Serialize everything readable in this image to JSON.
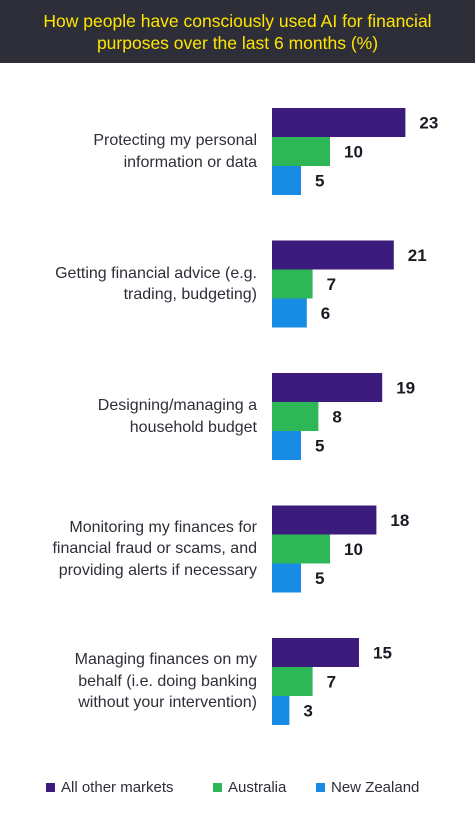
{
  "title": {
    "line1": "How people have consciously used AI for financial",
    "line2": "purposes over the last 6 months (%)"
  },
  "chart_data": {
    "type": "bar",
    "orientation": "horizontal",
    "title": "How people have consciously used AI for financial purposes over the last 6 months (%)",
    "categories": [
      "Protecting my personal information or data",
      "Getting financial advice (e.g. trading, budgeting)",
      "Designing/managing a household budget",
      "Monitoring my finances for financial fraud or scams, and providing alerts if necessary",
      "Managing finances on my behalf (i.e. doing banking without your intervention)"
    ],
    "category_lines": [
      [
        "Protecting my personal",
        "information or data"
      ],
      [
        "Getting financial advice (e.g.",
        "trading, budgeting)"
      ],
      [
        "Designing/managing a",
        "household budget"
      ],
      [
        "Monitoring my finances for",
        "financial fraud or scams, and",
        "providing alerts if necessary"
      ],
      [
        "Managing finances on my",
        "behalf (i.e. doing banking",
        "without your intervention)"
      ]
    ],
    "series": [
      {
        "name": "All other markets",
        "color": "#3b1c7c",
        "values": [
          23,
          21,
          19,
          18,
          15
        ]
      },
      {
        "name": "Australia",
        "color": "#2db757",
        "values": [
          10,
          7,
          8,
          10,
          7
        ]
      },
      {
        "name": "New Zealand",
        "color": "#188ce5",
        "values": [
          5,
          6,
          5,
          5,
          3
        ]
      }
    ],
    "data_labels": true,
    "grid": false,
    "legend_position": "bottom"
  }
}
